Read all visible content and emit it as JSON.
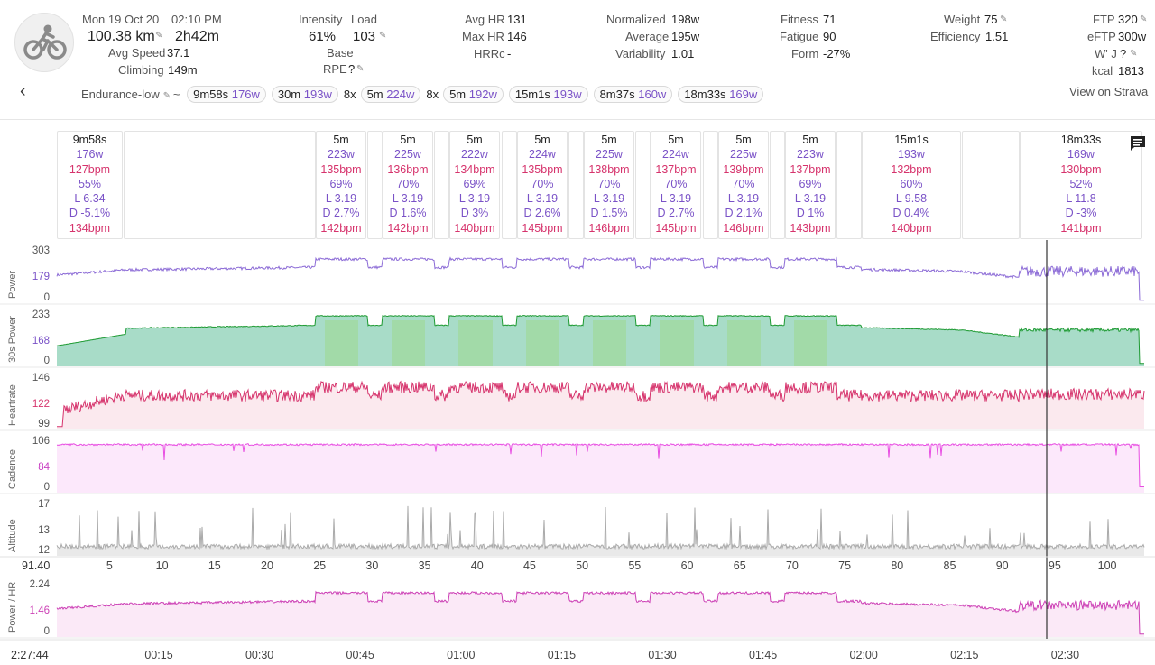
{
  "activity": {
    "date": "Mon 19 Oct 20",
    "time": "02:10 PM",
    "distance": "100.38 km",
    "duration": "2h42m",
    "avg_speed_label": "Avg Speed",
    "avg_speed": "37.1",
    "climbing_label": "Climbing",
    "climbing": "149m"
  },
  "intensity": {
    "intensity_label": "Intensity",
    "intensity": "61%",
    "load_label": "Load",
    "load": "103",
    "base": "Base",
    "rpe_label": "RPE",
    "rpe": "?"
  },
  "hr": {
    "avg_label": "Avg HR",
    "avg": "131",
    "max_label": "Max HR",
    "max": "146",
    "hrrc_label": "HRRc",
    "hrrc": "-"
  },
  "power": {
    "norm_label": "Normalized",
    "norm": "198w",
    "avg_label": "Average",
    "avg": "195w",
    "var_label": "Variability",
    "var": "1.01"
  },
  "fitness": {
    "fitness_label": "Fitness",
    "fitness": "71",
    "fatigue_label": "Fatigue",
    "fatigue": "90",
    "form_label": "Form",
    "form": "-27%"
  },
  "weight": {
    "weight_label": "Weight",
    "weight": "75",
    "eff_label": "Efficiency",
    "eff": "1.51"
  },
  "ftp": {
    "ftp_label": "FTP",
    "ftp": "320",
    "eftp_label": "eFTP",
    "eftp": "300w",
    "wj_label": "W' J",
    "wj": "?",
    "kcal_label": "kcal",
    "kcal": "1813"
  },
  "strava_link": "View on Strava",
  "workout": {
    "name": "Endurance-low",
    "sep": "~",
    "chips": [
      {
        "pre": "",
        "dur": "9m58s",
        "w": "176w"
      },
      {
        "pre": "",
        "dur": "30m",
        "w": "193w"
      },
      {
        "pre": "8x",
        "dur": "5m",
        "w": "224w"
      },
      {
        "pre": "8x",
        "dur": "5m",
        "w": "192w"
      },
      {
        "pre": "",
        "dur": "15m1s",
        "w": "193w"
      },
      {
        "pre": "",
        "dur": "8m37s",
        "w": "160w"
      },
      {
        "pre": "",
        "dur": "18m33s",
        "w": "169w"
      }
    ]
  },
  "intervals": [
    {
      "dur": "9m58s",
      "w": "176w",
      "hr": "127bpm",
      "pct": "55%",
      "l": "L 6.34",
      "d": "D -5.1%",
      "max": "134bpm"
    },
    {
      "dur": "5m",
      "w": "223w",
      "hr": "135bpm",
      "pct": "69%",
      "l": "L 3.19",
      "d": "D 2.7%",
      "max": "142bpm"
    },
    {
      "dur": "5m",
      "w": "225w",
      "hr": "136bpm",
      "pct": "70%",
      "l": "L 3.19",
      "d": "D 1.6%",
      "max": "142bpm"
    },
    {
      "dur": "5m",
      "w": "222w",
      "hr": "134bpm",
      "pct": "69%",
      "l": "L 3.19",
      "d": "D 3%",
      "max": "140bpm"
    },
    {
      "dur": "5m",
      "w": "224w",
      "hr": "135bpm",
      "pct": "70%",
      "l": "L 3.19",
      "d": "D 2.6%",
      "max": "145bpm"
    },
    {
      "dur": "5m",
      "w": "225w",
      "hr": "138bpm",
      "pct": "70%",
      "l": "L 3.19",
      "d": "D 1.5%",
      "max": "146bpm"
    },
    {
      "dur": "5m",
      "w": "224w",
      "hr": "137bpm",
      "pct": "70%",
      "l": "L 3.19",
      "d": "D 2.7%",
      "max": "145bpm"
    },
    {
      "dur": "5m",
      "w": "225w",
      "hr": "139bpm",
      "pct": "70%",
      "l": "L 3.19",
      "d": "D 2.1%",
      "max": "146bpm"
    },
    {
      "dur": "5m",
      "w": "223w",
      "hr": "137bpm",
      "pct": "69%",
      "l": "L 3.19",
      "d": "D 1%",
      "max": "143bpm"
    },
    {
      "dur": "15m1s",
      "w": "193w",
      "hr": "132bpm",
      "pct": "60%",
      "l": "L 9.58",
      "d": "D 0.4%",
      "max": "140bpm"
    },
    {
      "dur": "18m33s",
      "w": "169w",
      "hr": "130bpm",
      "pct": "52%",
      "l": "L 11.8",
      "d": "D -3%",
      "max": "141bpm"
    }
  ],
  "charts": {
    "power": {
      "title": "Power",
      "ticks": [
        "303",
        "179",
        "0"
      ],
      "color": "#8b6ad6"
    },
    "power30": {
      "title": "30s Power",
      "ticks": [
        "233",
        "168",
        "0"
      ],
      "color": "#1d9a32"
    },
    "heartrate": {
      "title": "Heartrate",
      "ticks": [
        "146",
        "122",
        "99"
      ],
      "color": "#d6336c"
    },
    "cadence": {
      "title": "Cadence",
      "ticks": [
        "106",
        "84",
        "0"
      ],
      "color": "#e84de2"
    },
    "altitude": {
      "title": "Altitude",
      "ticks": [
        "17",
        "13",
        "12"
      ],
      "color": "#aaaaaa"
    },
    "phr": {
      "title": "Power / HR",
      "ticks": [
        "2.24",
        "1.46",
        "0"
      ],
      "color": "#cc3fb5"
    }
  },
  "cursor": {
    "distance": "91.40",
    "time": "2:27:44"
  },
  "distance_axis": [
    "5",
    "10",
    "15",
    "20",
    "25",
    "30",
    "35",
    "40",
    "45",
    "50",
    "55",
    "60",
    "65",
    "70",
    "75",
    "80",
    "85",
    "90",
    "95",
    "100"
  ],
  "time_axis": [
    "00:15",
    "00:30",
    "00:45",
    "01:00",
    "01:15",
    "01:30",
    "01:45",
    "02:00",
    "02:15",
    "02:30"
  ]
}
